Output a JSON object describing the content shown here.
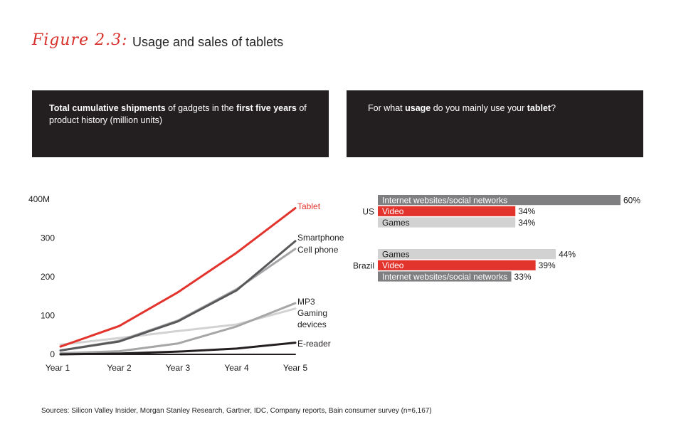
{
  "figure": {
    "label": "Figure 2.3:",
    "title": "Usage and sales of tablets"
  },
  "left_panel": {
    "parts": [
      {
        "text": "Total cumulative shipments",
        "bold": true
      },
      {
        "text": " of gadgets in the ",
        "bold": false
      },
      {
        "text": "first five years",
        "bold": true
      },
      {
        "text": " of product history (million units)",
        "bold": false
      }
    ]
  },
  "right_panel": {
    "parts": [
      {
        "text": "For what ",
        "bold": false
      },
      {
        "text": "usage",
        "bold": true
      },
      {
        "text": " do you mainly use your ",
        "bold": false
      },
      {
        "text": "tablet",
        "bold": true
      },
      {
        "text": "?",
        "bold": false
      }
    ]
  },
  "chart_data": [
    {
      "type": "line",
      "x": [
        "Year 1",
        "Year 2",
        "Year 3",
        "Year 4",
        "Year 5"
      ],
      "yticks": [
        "0",
        "100",
        "200",
        "300",
        "400M"
      ],
      "ytick_values": [
        0,
        100,
        200,
        300,
        400
      ],
      "ylim": [
        0,
        400
      ],
      "series": [
        {
          "name": "Tablet",
          "values": [
            20,
            73,
            160,
            262,
            377
          ],
          "color": "#e2332c"
        },
        {
          "name": "Smartphone",
          "values": [
            10,
            33,
            85,
            165,
            292
          ],
          "color": "#58585a"
        },
        {
          "name": "Cell phone",
          "values": [
            10,
            35,
            87,
            168,
            272
          ],
          "color": "#a6a6a8"
        },
        {
          "name": "MP3",
          "values": [
            3,
            8,
            28,
            72,
            132
          ],
          "color": "#a6a6a8"
        },
        {
          "name": "Gaming devices",
          "values": [
            25,
            42,
            60,
            77,
            118
          ],
          "color": "#d2d2d3"
        },
        {
          "name": "E-reader",
          "values": [
            0,
            2,
            7,
            15,
            30
          ],
          "color": "#231f20"
        },
        {
          "name": "",
          "values": [
            0,
            0,
            0,
            0,
            0
          ],
          "color": "#231f20"
        }
      ],
      "labels": [
        {
          "text": "Tablet",
          "color": "#e2332c"
        },
        {
          "text": "Smartphone",
          "color": "#231f20"
        },
        {
          "text": "Cell phone",
          "color": "#231f20"
        },
        {
          "text": "MP3",
          "color": "#231f20"
        },
        {
          "text": "Gaming",
          "color": "#231f20"
        },
        {
          "text": "devices",
          "color": "#231f20"
        },
        {
          "text": "E-reader",
          "color": "#231f20"
        }
      ]
    },
    {
      "type": "bar",
      "orientation": "horizontal",
      "xlim": [
        0,
        60
      ],
      "groups": [
        {
          "name": "US",
          "bars": [
            {
              "label": "Internet websites/social networks",
              "value": 60,
              "display": "60%",
              "color": "#7f7f81"
            },
            {
              "label": "Video",
              "value": 34,
              "display": "34%",
              "color": "#e2332c"
            },
            {
              "label": "Games",
              "value": 34,
              "display": "34%",
              "color": "#d2d2d3"
            }
          ]
        },
        {
          "name": "Brazil",
          "bars": [
            {
              "label": "Games",
              "value": 44,
              "display": "44%",
              "color": "#d2d2d3"
            },
            {
              "label": "Video",
              "value": 39,
              "display": "39%",
              "color": "#e2332c"
            },
            {
              "label": "Internet websites/social networks",
              "value": 33,
              "display": "33%",
              "color": "#7f7f81"
            }
          ]
        }
      ]
    }
  ],
  "source": "Sources: Silicon Valley Insider, Morgan Stanley Research, Gartner, IDC, Company reports, Bain consumer survey (n=6,167)"
}
